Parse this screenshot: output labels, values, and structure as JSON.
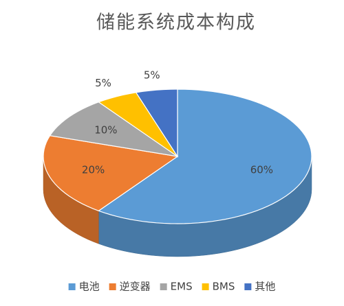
{
  "chart_data": {
    "type": "pie3d",
    "title": "储能系统成本构成",
    "categories": [
      "电池",
      "逆变器",
      "EMS",
      "BMS",
      "其他"
    ],
    "values": [
      60,
      20,
      10,
      5,
      5
    ],
    "value_labels": [
      "60%",
      "20%",
      "10%",
      "5%",
      "5%"
    ],
    "colors": [
      "#5b9bd5",
      "#ed7d31",
      "#a5a5a5",
      "#ffc000",
      "#4472c4"
    ],
    "legend": "bottom"
  }
}
